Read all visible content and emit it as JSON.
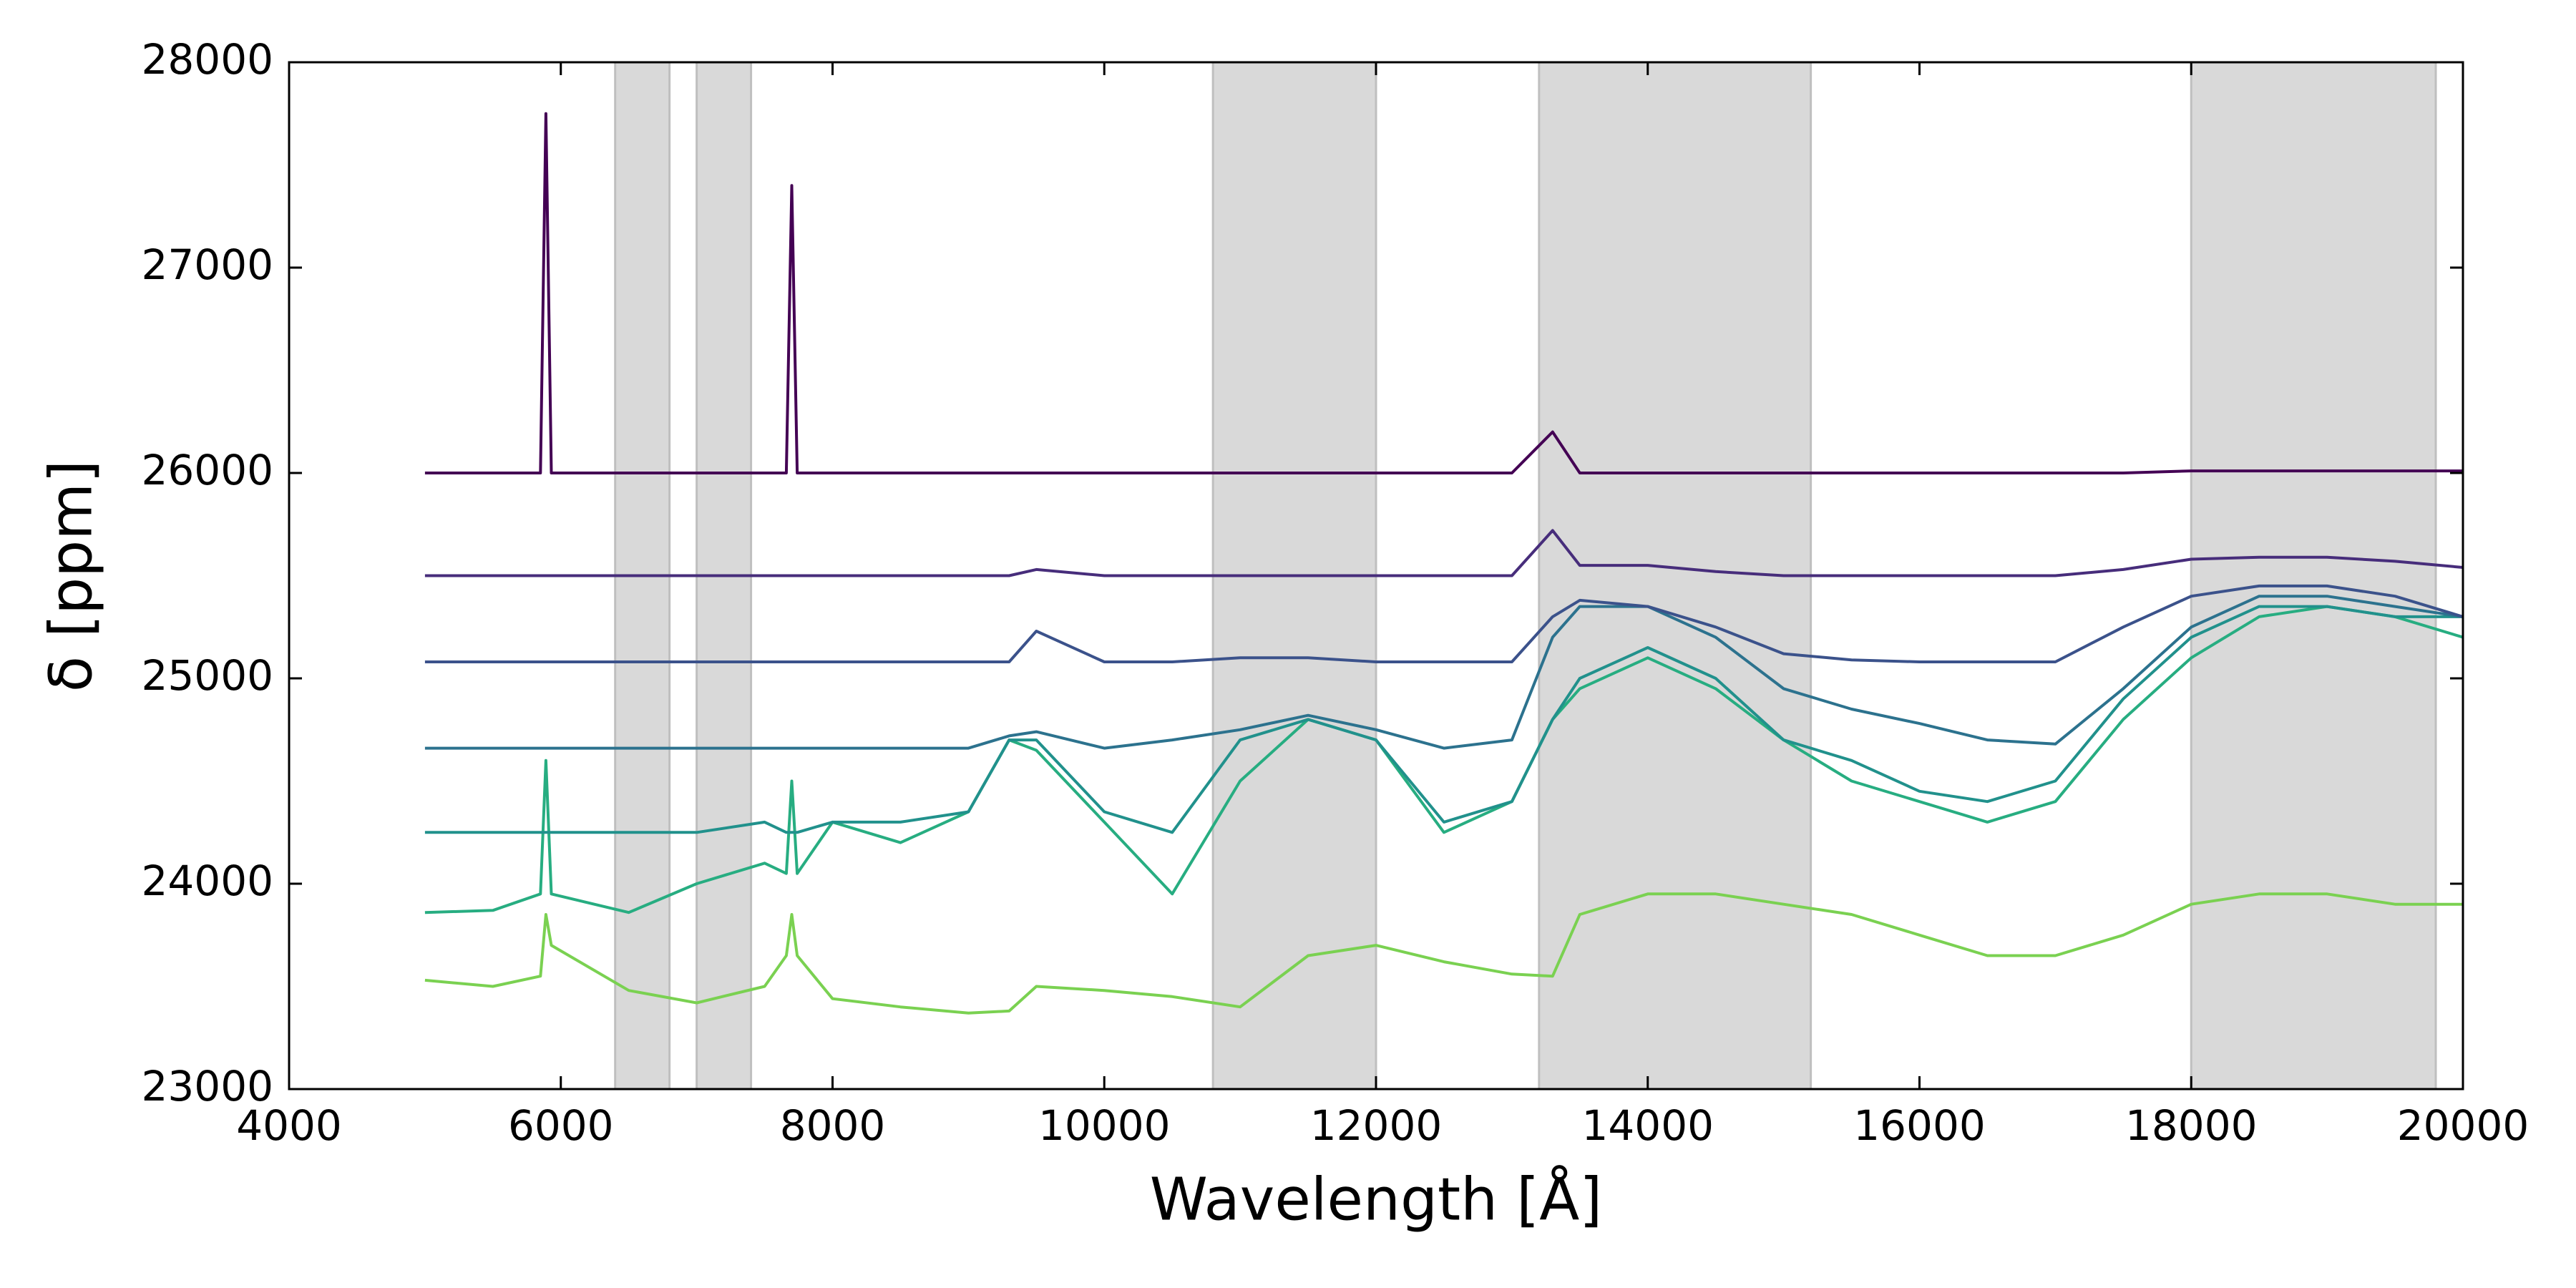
{
  "chart_data": {
    "type": "line",
    "xlabel": "Wavelength [Å]",
    "ylabel": "δ [ppm]",
    "x": [
      5000,
      5500,
      5850,
      5890,
      5930,
      6500,
      7000,
      7500,
      7660,
      7700,
      7740,
      8000,
      8500,
      9000,
      9300,
      9500,
      10000,
      10500,
      11000,
      11500,
      12000,
      12500,
      13000,
      13300,
      13500,
      14000,
      14500,
      15000,
      15500,
      16000,
      16500,
      17000,
      17500,
      18000,
      18500,
      19000,
      19500,
      20000
    ],
    "series": [
      {
        "color": "#440154",
        "values": [
          26000,
          26000,
          26000,
          27750,
          26000,
          26000,
          26000,
          26000,
          26000,
          27400,
          26000,
          26000,
          26000,
          26000,
          26000,
          26000,
          26000,
          26000,
          26000,
          26000,
          26000,
          26000,
          26000,
          26200,
          26000,
          26000,
          26000,
          26000,
          26000,
          26000,
          26000,
          26000,
          26000,
          26010,
          26010,
          26010,
          26010,
          26010
        ]
      },
      {
        "color": "#472d7b",
        "values": [
          25500,
          25500,
          25500,
          25500,
          25500,
          25500,
          25500,
          25500,
          25500,
          25500,
          25500,
          25500,
          25500,
          25500,
          25500,
          25530,
          25500,
          25500,
          25500,
          25500,
          25500,
          25500,
          25500,
          25720,
          25550,
          25550,
          25520,
          25500,
          25500,
          25500,
          25500,
          25500,
          25530,
          25580,
          25590,
          25590,
          25570,
          25540
        ]
      },
      {
        "color": "#3b528b",
        "values": [
          25080,
          25080,
          25080,
          25080,
          25080,
          25080,
          25080,
          25080,
          25080,
          25080,
          25080,
          25080,
          25080,
          25080,
          25080,
          25230,
          25080,
          25080,
          25100,
          25100,
          25080,
          25080,
          25080,
          25300,
          25380,
          25350,
          25250,
          25120,
          25090,
          25080,
          25080,
          25080,
          25250,
          25400,
          25450,
          25450,
          25400,
          25300
        ]
      },
      {
        "color": "#2c728e",
        "values": [
          24660,
          24660,
          24660,
          24660,
          24660,
          24660,
          24660,
          24660,
          24660,
          24660,
          24660,
          24660,
          24660,
          24660,
          24720,
          24740,
          24660,
          24700,
          24750,
          24820,
          24750,
          24660,
          24700,
          25200,
          25350,
          25350,
          25200,
          24950,
          24850,
          24780,
          24700,
          24680,
          24950,
          25250,
          25400,
          25400,
          25350,
          25300
        ]
      },
      {
        "color": "#21918c",
        "values": [
          24250,
          24250,
          24250,
          24250,
          24250,
          24250,
          24250,
          24300,
          24250,
          24250,
          24250,
          24300,
          24300,
          24350,
          24700,
          24700,
          24350,
          24250,
          24700,
          24800,
          24700,
          24300,
          24400,
          24800,
          25000,
          25150,
          25000,
          24700,
          24600,
          24450,
          24400,
          24500,
          24900,
          25200,
          25350,
          25350,
          25300,
          25300
        ]
      },
      {
        "color": "#27ad81",
        "values": [
          23860,
          23870,
          23950,
          24600,
          23950,
          23860,
          24000,
          24100,
          24050,
          24500,
          24050,
          24300,
          24200,
          24350,
          24700,
          24650,
          24300,
          23950,
          24500,
          24800,
          24700,
          24250,
          24400,
          24800,
          24950,
          25100,
          24950,
          24700,
          24500,
          24400,
          24300,
          24400,
          24800,
          25100,
          25300,
          25350,
          25300,
          25200
        ]
      },
      {
        "color": "#7ad151",
        "values": [
          23530,
          23500,
          23550,
          23850,
          23700,
          23480,
          23420,
          23500,
          23650,
          23850,
          23650,
          23440,
          23400,
          23370,
          23380,
          23500,
          23480,
          23450,
          23400,
          23650,
          23700,
          23620,
          23560,
          23550,
          23850,
          23950,
          23950,
          23900,
          23850,
          23750,
          23650,
          23650,
          23750,
          23900,
          23950,
          23950,
          23900,
          23900
        ]
      }
    ],
    "shaded_regions": [
      [
        6400,
        6800
      ],
      [
        7000,
        7400
      ],
      [
        10800,
        12000
      ],
      [
        13200,
        15200
      ],
      [
        18000,
        19800
      ]
    ],
    "shade_color": "#d9d9d9",
    "xlim": [
      4000,
      20000
    ],
    "xticks": [
      4000,
      6000,
      8000,
      10000,
      12000,
      14000,
      16000,
      18000,
      20000
    ],
    "ylim": [
      23000,
      28000
    ],
    "yticks": [
      23000,
      24000,
      25000,
      26000,
      27000,
      28000
    ],
    "grid": false
  }
}
